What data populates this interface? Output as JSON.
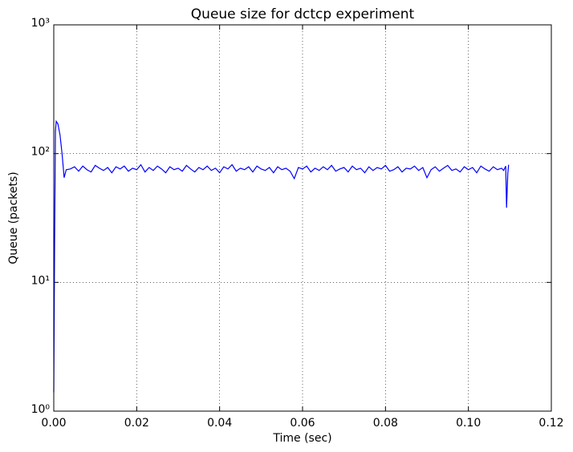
{
  "chart_data": {
    "type": "line",
    "title": "Queue size for dctcp experiment",
    "x_label": "Time (sec)",
    "y_label": "Queue (packets)",
    "log_y": true,
    "grid": true,
    "color": "#0000ff",
    "xlim": [
      0,
      0.12
    ],
    "xticks": [
      {
        "value": 0,
        "label": "0.00"
      },
      0.02,
      0.04,
      0.06,
      0.08,
      {
        "value": 0.1,
        "label": "0.10"
      },
      0.12
    ],
    "ylim": [
      1,
      1000
    ],
    "yticks": [
      {
        "value": 1,
        "label": "10⁰"
      },
      {
        "value": 10,
        "label": "10¹"
      },
      {
        "value": 100,
        "label": "10²"
      },
      {
        "value": 1000,
        "label": "10³"
      }
    ],
    "x": [
      0,
      0.0002,
      0.0004,
      0.0006,
      0.001,
      0.0015,
      0.002,
      0.0025,
      0.003,
      0.004,
      0.005,
      0.006,
      0.007,
      0.008,
      0.009,
      0.01,
      0.011,
      0.012,
      0.013,
      0.014,
      0.015,
      0.016,
      0.017,
      0.018,
      0.019,
      0.02,
      0.021,
      0.022,
      0.023,
      0.024,
      0.025,
      0.026,
      0.027,
      0.028,
      0.029,
      0.03,
      0.031,
      0.032,
      0.033,
      0.034,
      0.035,
      0.036,
      0.037,
      0.038,
      0.039,
      0.04,
      0.041,
      0.042,
      0.043,
      0.044,
      0.045,
      0.046,
      0.047,
      0.048,
      0.049,
      0.05,
      0.051,
      0.052,
      0.053,
      0.054,
      0.055,
      0.056,
      0.057,
      0.058,
      0.059,
      0.06,
      0.061,
      0.062,
      0.063,
      0.064,
      0.065,
      0.066,
      0.067,
      0.068,
      0.069,
      0.07,
      0.071,
      0.072,
      0.073,
      0.074,
      0.075,
      0.076,
      0.077,
      0.078,
      0.079,
      0.08,
      0.081,
      0.082,
      0.083,
      0.084,
      0.085,
      0.086,
      0.087,
      0.088,
      0.089,
      0.09,
      0.091,
      0.092,
      0.093,
      0.094,
      0.095,
      0.096,
      0.097,
      0.098,
      0.099,
      0.1,
      0.101,
      0.102,
      0.103,
      0.104,
      0.105,
      0.106,
      0.107,
      0.108,
      0.1085,
      0.109,
      0.1092,
      0.1095,
      0.1097
    ],
    "values": [
      1.4,
      20,
      150,
      178,
      170,
      140,
      100,
      65,
      75,
      76,
      79,
      73,
      80,
      75,
      72,
      81,
      77,
      74,
      78,
      71,
      79,
      76,
      80,
      73,
      77,
      75,
      82,
      72,
      78,
      74,
      80,
      76,
      71,
      79,
      75,
      77,
      73,
      81,
      76,
      72,
      78,
      75,
      80,
      74,
      77,
      71,
      79,
      76,
      82,
      73,
      77,
      75,
      79,
      72,
      80,
      76,
      74,
      78,
      71,
      79,
      75,
      77,
      73,
      64,
      78,
      76,
      80,
      72,
      77,
      74,
      79,
      75,
      81,
      73,
      76,
      78,
      72,
      80,
      75,
      77,
      71,
      79,
      74,
      78,
      76,
      81,
      73,
      75,
      79,
      72,
      77,
      76,
      80,
      74,
      78,
      65,
      75,
      79,
      73,
      77,
      81,
      74,
      76,
      72,
      79,
      75,
      78,
      71,
      80,
      76,
      73,
      79,
      75,
      77,
      74,
      80,
      38,
      70,
      82
    ]
  }
}
